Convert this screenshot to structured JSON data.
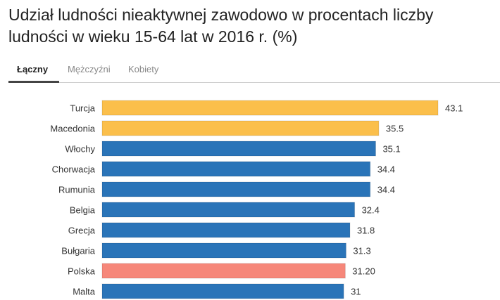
{
  "title": "Udział ludności nieaktywnej zawodowo w procentach liczby ludności w wieku 15-64 lat w 2016 r. (%)",
  "tabs": [
    {
      "label": "Łączny",
      "active": true
    },
    {
      "label": "Mężczyźni",
      "active": false
    },
    {
      "label": "Kobiety",
      "active": false
    }
  ],
  "colors": {
    "highlight": "#fbbf4b",
    "default": "#2a74b8",
    "poland": "#f6877a"
  },
  "chart_data": {
    "type": "bar",
    "orientation": "horizontal",
    "categories": [
      "Turcja",
      "Macedonia",
      "Włochy",
      "Chorwacja",
      "Rumunia",
      "Belgia",
      "Grecja",
      "Bułgaria",
      "Polska",
      "Malta"
    ],
    "values": [
      43.1,
      35.5,
      35.1,
      34.4,
      34.4,
      32.4,
      31.8,
      31.3,
      31.2,
      31
    ],
    "value_labels": [
      "43.1",
      "35.5",
      "35.1",
      "34.4",
      "34.4",
      "32.4",
      "31.8",
      "31.3",
      "31.20",
      "31"
    ],
    "bar_colors": [
      "highlight",
      "highlight",
      "default",
      "default",
      "default",
      "default",
      "default",
      "default",
      "poland",
      "default"
    ],
    "xlim": [
      0,
      43.1
    ],
    "grid": false,
    "legend": "none"
  }
}
